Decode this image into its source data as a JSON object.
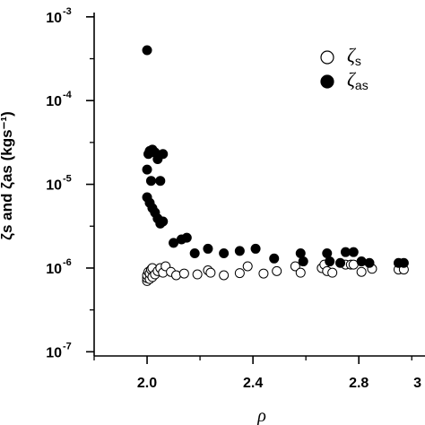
{
  "chart_data": {
    "type": "scatter",
    "title": "",
    "xlabel": "ρ",
    "ylabel": "ζs and ζas (kgs⁻¹)",
    "xlim": [
      1.8,
      3.05
    ],
    "ylim_log10": [
      -7.05,
      -2.97
    ],
    "x_ticks": [
      {
        "value": 2.0,
        "label": "2.0"
      },
      {
        "value": 2.4,
        "label": "2.4"
      },
      {
        "value": 2.8,
        "label": "2.8"
      },
      {
        "value": 3.2,
        "label": "3"
      }
    ],
    "y_ticks": [
      {
        "value": 0.001,
        "base": "10",
        "exp": "-3"
      },
      {
        "value": 0.0001,
        "base": "10",
        "exp": "-4"
      },
      {
        "value": 1e-05,
        "base": "10",
        "exp": "-5"
      },
      {
        "value": 1e-06,
        "base": "10",
        "exp": "-6"
      },
      {
        "value": 1e-07,
        "base": "10",
        "exp": "-7"
      }
    ],
    "legend": {
      "placement": "top-right",
      "entries": [
        {
          "symbol": "ζ",
          "sub": "s",
          "marker": "open-circle"
        },
        {
          "symbol": "ζ",
          "sub": "as",
          "marker": "filled-circle"
        }
      ]
    },
    "series": [
      {
        "marker": "open-circle",
        "points": [
          [
            2.0,
            7e-07
          ],
          [
            2.0,
            7.6e-07
          ],
          [
            2.0,
            8.2e-07
          ],
          [
            2.005,
            9e-07
          ],
          [
            2.01,
            7.4e-07
          ],
          [
            2.01,
            8.6e-07
          ],
          [
            2.015,
            9.6e-07
          ],
          [
            2.02,
            7.8e-07
          ],
          [
            2.02,
            1e-06
          ],
          [
            2.03,
            8.4e-07
          ],
          [
            2.04,
            9.2e-07
          ],
          [
            2.05,
            1e-06
          ],
          [
            2.06,
            8.8e-07
          ],
          [
            2.07,
            1.05e-06
          ],
          [
            2.09,
            9e-07
          ],
          [
            2.11,
            8.2e-07
          ],
          [
            2.14,
            8.6e-07
          ],
          [
            2.19,
            8.4e-07
          ],
          [
            2.23,
            9.4e-07
          ],
          [
            2.24,
            8.8e-07
          ],
          [
            2.29,
            8.2e-07
          ],
          [
            2.35,
            8.7e-07
          ],
          [
            2.38,
            1.05e-06
          ],
          [
            2.44,
            8.6e-07
          ],
          [
            2.49,
            9.2e-07
          ],
          [
            2.56,
            1.05e-06
          ],
          [
            2.58,
            8.8e-07
          ],
          [
            2.66,
            1e-06
          ],
          [
            2.67,
            1.1e-06
          ],
          [
            2.68,
            9.2e-07
          ],
          [
            2.7,
            8.8e-07
          ],
          [
            2.75,
            1.1e-06
          ],
          [
            2.77,
            1.1e-06
          ],
          [
            2.78,
            1.1e-06
          ],
          [
            2.81,
            9e-07
          ],
          [
            2.85,
            9.8e-07
          ],
          [
            2.95,
            9.6e-07
          ],
          [
            2.97,
            9.6e-07
          ]
        ]
      },
      {
        "marker": "filled-circle",
        "points": [
          [
            2.0,
            0.0004
          ],
          [
            2.005,
            2.3e-05
          ],
          [
            2.01,
            2.5e-05
          ],
          [
            2.02,
            2.6e-05
          ],
          [
            2.03,
            2.4e-05
          ],
          [
            2.06,
            2.3e-05
          ],
          [
            2.04,
            2e-05
          ],
          [
            2.0,
            1.5e-05
          ],
          [
            2.015,
            1.1e-05
          ],
          [
            2.05,
            1.1e-05
          ],
          [
            2.0,
            7e-06
          ],
          [
            2.01,
            6e-06
          ],
          [
            2.02,
            5.2e-06
          ],
          [
            2.03,
            4.6e-06
          ],
          [
            2.04,
            3.9e-06
          ],
          [
            2.05,
            3.4e-06
          ],
          [
            2.06,
            3.6e-06
          ],
          [
            2.1,
            2e-06
          ],
          [
            2.15,
            2.3e-06
          ],
          [
            2.13,
            2.2e-06
          ],
          [
            2.18,
            1.5e-06
          ],
          [
            2.23,
            1.7e-06
          ],
          [
            2.29,
            1.5e-06
          ],
          [
            2.35,
            1.6e-06
          ],
          [
            2.41,
            1.7e-06
          ],
          [
            2.48,
            1.3e-06
          ],
          [
            2.58,
            1.5e-06
          ],
          [
            2.59,
            1.2e-06
          ],
          [
            2.68,
            1.5e-06
          ],
          [
            2.69,
            1.2e-06
          ],
          [
            2.73,
            1.15e-06
          ],
          [
            2.75,
            1.55e-06
          ],
          [
            2.78,
            1.55e-06
          ],
          [
            2.81,
            1.2e-06
          ],
          [
            2.84,
            1.15e-06
          ],
          [
            2.95,
            1.15e-06
          ],
          [
            2.97,
            1.15e-06
          ]
        ]
      }
    ]
  }
}
